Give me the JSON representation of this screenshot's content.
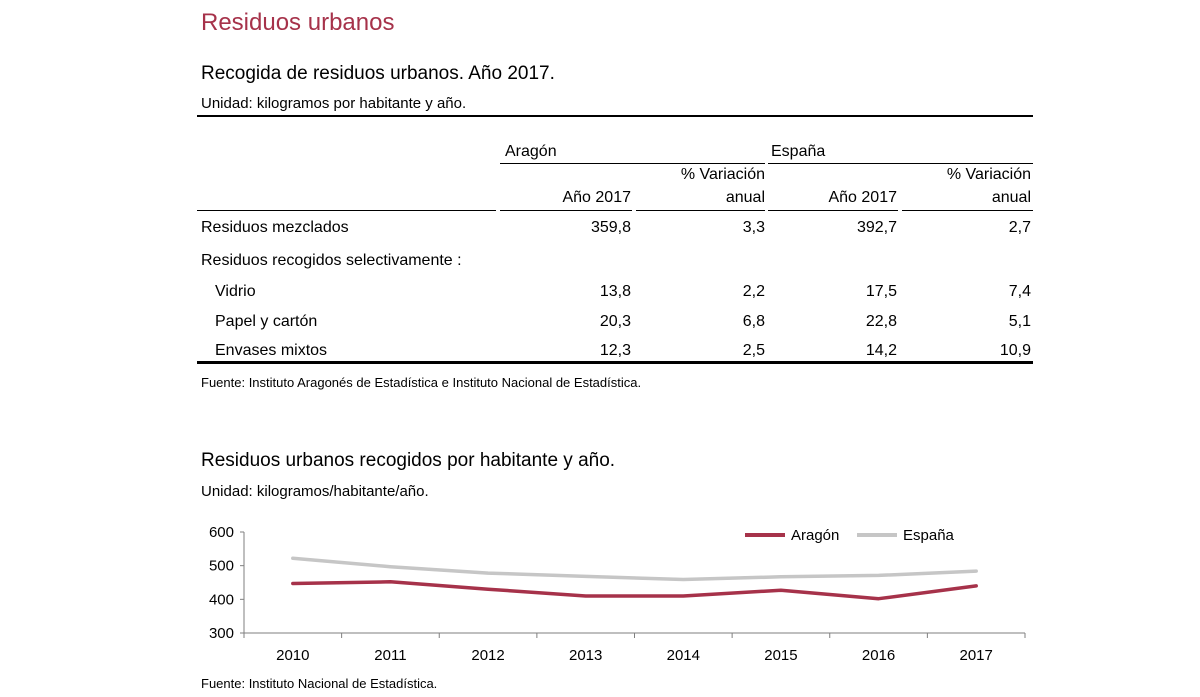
{
  "section_title": "Residuos urbanos",
  "table": {
    "title": "Recogida de residuos urbanos. Año 2017.",
    "unit": "Unidad: kilogramos por habitante y año.",
    "group_headers": [
      "Aragón",
      "España"
    ],
    "col_headers": {
      "year": "Año 2017",
      "variation_line1": "% Variación",
      "variation_line2": "anual"
    },
    "rows": [
      {
        "label": "Residuos mezclados",
        "values": [
          "359,8",
          "3,3",
          "392,7",
          "2,7"
        ]
      },
      {
        "label": "Residuos recogidos selectivamente :",
        "values": [
          "",
          "",
          "",
          ""
        ]
      },
      {
        "label": "Vidrio",
        "values": [
          "13,8",
          "2,2",
          "17,5",
          "7,4"
        ]
      },
      {
        "label": "Papel y cartón",
        "values": [
          "20,3",
          "6,8",
          "22,8",
          "5,1"
        ]
      },
      {
        "label": "Envases mixtos",
        "values": [
          "12,3",
          "2,5",
          "14,2",
          "10,9"
        ]
      }
    ],
    "source": "Fuente: Instituto Aragonés de Estadística e Instituto Nacional de Estadística."
  },
  "chart_header": {
    "title": "Residuos urbanos recogidos por habitante y año.",
    "unit": "Unidad: kilogramos/habitante/año.",
    "source": "Fuente: Instituto Nacional de Estadística."
  },
  "chart_data": {
    "type": "line",
    "x": [
      "2010",
      "2011",
      "2012",
      "2013",
      "2014",
      "2015",
      "2016",
      "2017"
    ],
    "series": [
      {
        "name": "Aragón",
        "color": "#a6324a",
        "values": [
          447,
          452,
          430,
          410,
          410,
          427,
          402,
          440
        ]
      },
      {
        "name": "España",
        "color": "#c6c6c6",
        "values": [
          522,
          497,
          478,
          468,
          459,
          467,
          471,
          484
        ]
      }
    ],
    "y_ticks": [
      "600",
      "500",
      "400",
      "300"
    ],
    "ylim": [
      300,
      600
    ],
    "legend_position": "top-right",
    "grid": false
  }
}
